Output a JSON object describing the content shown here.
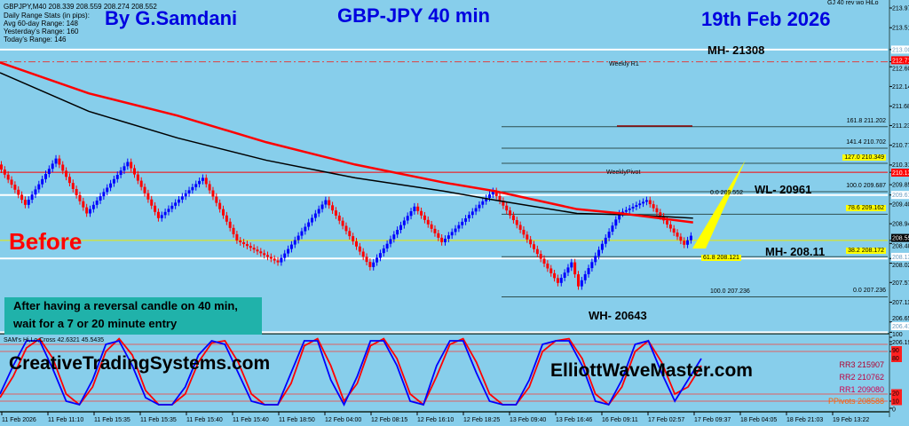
{
  "header": {
    "symbol_line": "GBPJPY,M40  208.339 208.559 208.274 208.552",
    "stats_title": "Daily Range Stats (in pips):",
    "avg_range": "Avg 60-day Range: 148",
    "yesterday_range": "Yesterday's Range: 160",
    "today_range": "Today's Range: 146",
    "indicator_name": "GJ 40 rev wo HiLo"
  },
  "overlay": {
    "author": "By G.Samdani",
    "title": "GBP-JPY 40 min",
    "date": "19th Feb 2026",
    "before": "Before",
    "mh1": "MH- 21308",
    "wl": "WL- 20961",
    "mh2": "MH- 208.11",
    "wh": "WH- 20643",
    "weekly_r1": "Weekly R1",
    "weekly_pivot": "WeeklyPivot",
    "note": "After having a reversal candle on 40 min, wait for a 7 or 20 minute entry",
    "site1": "CreativeTradingSystems.com",
    "site2": "ElliottWaveMaster.com"
  },
  "fib": [
    {
      "label": "161.8  211.202",
      "price": 211.202,
      "hl": false
    },
    {
      "label": "141.4  210.702",
      "price": 210.702,
      "hl": false
    },
    {
      "label": "127.0  210.349",
      "price": 210.349,
      "hl": true
    },
    {
      "label": "100.0  209.687",
      "price": 209.687,
      "hl": false
    },
    {
      "label": "78.6  209.162",
      "price": 209.162,
      "hl": true
    },
    {
      "label": "38.2  208.172",
      "price": 208.172,
      "hl": true
    },
    {
      "label": "0.0  207.236",
      "price": 207.236,
      "hl": false
    }
  ],
  "fib_inner": [
    {
      "label": "0.0  209.552",
      "price": 209.552,
      "hl": false
    },
    {
      "label": "61.8  208.121",
      "price": 208.121,
      "hl": true
    },
    {
      "label": "100.0  207.236",
      "price": 207.236,
      "hl": false
    }
  ],
  "oscillator": {
    "label": "SAM's Hi,Lo,Cross 42.6321 45.5435",
    "pivots": [
      "RR3 215907",
      "RR2 210762",
      "RR1 209080",
      "PPivots 208588"
    ]
  },
  "colors": {
    "bg": "#87ceeb",
    "up": "#0000ff",
    "down": "#ff0000",
    "ma_fast": "#ff0000",
    "ma_slow": "#000000",
    "fib": "#000000",
    "accent": "#ffff00"
  },
  "chart_data": {
    "type": "candlestick",
    "ylim": [
      206.19,
      213.97
    ],
    "y_ticks": [
      "213.970",
      "213.510",
      "213.000",
      "212.716",
      "212.600",
      "212.140",
      "211.680",
      "211.230",
      "210.770",
      "210.310",
      "210.139",
      "209.850",
      "209.610",
      "209.400",
      "208.940",
      "208.552",
      "208.480",
      "208.130",
      "208.020",
      "207.570",
      "207.110",
      "206.650",
      "206.410",
      "206.190"
    ],
    "y_tick_values": [
      213.97,
      213.51,
      213.0,
      212.716,
      212.6,
      212.14,
      211.68,
      211.23,
      210.77,
      210.31,
      210.139,
      209.85,
      209.61,
      209.4,
      208.94,
      208.552,
      208.48,
      208.13,
      208.02,
      207.57,
      207.11,
      206.65,
      206.41,
      206.19
    ],
    "highlight_ticks": {
      "213.000": "white",
      "212.716": "red",
      "210.139": "red",
      "209.610": "white",
      "208.552": "black",
      "208.130": "white",
      "206.410": "white"
    },
    "x_ticks": [
      "11 Feb 2026",
      "11 Feb 11:10",
      "11 Feb 15:35",
      "11 Feb 15:35",
      "11 Feb 15:40",
      "11 Feb 15:40",
      "11 Feb 18:50",
      "12 Feb 04:00",
      "12 Feb 08:15",
      "12 Feb 16:10",
      "12 Feb 18:25",
      "13 Feb 09:40",
      "13 Feb 16:46",
      "16 Feb 09:11",
      "17 Feb 02:57",
      "17 Feb 09:37",
      "18 Feb 04:05",
      "18 Feb 21:03",
      "19 Feb 13:22"
    ],
    "bars_total": 260,
    "price_path": [
      [
        0,
        210.32
      ],
      [
        8,
        209.38
      ],
      [
        17,
        210.46
      ],
      [
        26,
        209.18
      ],
      [
        38,
        210.38
      ],
      [
        47,
        209.07
      ],
      [
        60,
        210.01
      ],
      [
        70,
        208.55
      ],
      [
        82,
        208.04
      ],
      [
        96,
        209.49
      ],
      [
        109,
        207.93
      ],
      [
        122,
        209.34
      ],
      [
        130,
        208.51
      ],
      [
        145,
        209.7
      ],
      [
        164,
        207.56
      ],
      [
        168,
        208.04
      ],
      [
        170,
        207.48
      ],
      [
        182,
        209.18
      ],
      [
        190,
        209.49
      ],
      [
        201,
        208.45
      ],
      [
        203,
        208.66
      ]
    ],
    "ma_fast": [
      [
        0,
        212.7
      ],
      [
        26,
        211.98
      ],
      [
        52,
        211.46
      ],
      [
        78,
        210.84
      ],
      [
        104,
        210.32
      ],
      [
        130,
        209.9
      ],
      [
        145,
        209.7
      ],
      [
        169,
        209.28
      ],
      [
        182,
        209.18
      ],
      [
        203,
        208.97
      ]
    ],
    "ma_slow": [
      [
        0,
        212.46
      ],
      [
        26,
        211.56
      ],
      [
        52,
        210.94
      ],
      [
        78,
        210.42
      ],
      [
        104,
        210.01
      ],
      [
        130,
        209.7
      ],
      [
        145,
        209.49
      ],
      [
        169,
        209.18
      ],
      [
        187,
        209.14
      ],
      [
        203,
        209.07
      ]
    ],
    "horizontal_lines": [
      {
        "price": 213.0,
        "color": "#ffffff"
      },
      {
        "price": 212.716,
        "color": "#e04040",
        "dash": true
      },
      {
        "price": 210.139,
        "color": "#ff0000"
      },
      {
        "price": 209.61,
        "color": "#ffffff"
      },
      {
        "price": 208.552,
        "color": "#e8e800"
      },
      {
        "price": 208.13,
        "color": "#ffffff"
      },
      {
        "price": 206.41,
        "color": "#ffffff"
      }
    ],
    "osc_ylim": [
      0,
      100
    ],
    "osc_ticks": [
      "100",
      "90",
      "80",
      "20",
      "10",
      "0"
    ],
    "osc_fast": [
      20,
      60,
      95,
      95,
      55,
      10,
      5,
      40,
      90,
      95,
      60,
      15,
      5,
      5,
      30,
      75,
      95,
      90,
      50,
      10,
      5,
      5,
      50,
      95,
      95,
      40,
      5,
      45,
      95,
      95,
      60,
      10,
      5,
      60,
      95,
      95,
      50,
      10,
      5,
      5,
      40,
      90,
      95,
      95,
      60,
      10,
      5,
      40,
      90,
      95,
      50,
      10,
      40,
      70
    ],
    "osc_slow": [
      15,
      45,
      85,
      98,
      70,
      20,
      5,
      30,
      80,
      98,
      75,
      25,
      5,
      5,
      20,
      65,
      92,
      95,
      65,
      20,
      5,
      5,
      35,
      88,
      98,
      60,
      10,
      35,
      88,
      98,
      70,
      20,
      5,
      45,
      90,
      98,
      65,
      20,
      5,
      5,
      30,
      80,
      95,
      98,
      70,
      20,
      5,
      30,
      80,
      95,
      65,
      20,
      30,
      60
    ]
  }
}
